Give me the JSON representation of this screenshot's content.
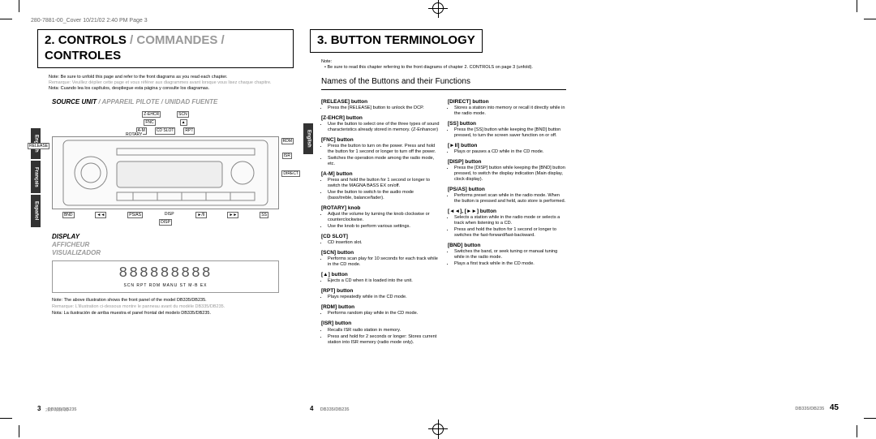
{
  "header_slug": "280-7881-00_Cover  10/21/02  2:40 PM  Page 3",
  "page_left": {
    "section_number": "2.",
    "section_title_en": "CONTROLS",
    "section_title_fr": "COMMANDES",
    "section_title_es": "CONTROLES",
    "note_en": "Note: Be sure to unfold this page and refer to the front diagrams as you read each chapter.",
    "note_fr": "Remarque: Veuillez déplier cette page et vous référer aux diagrammes avant lorsque vous lisez chaque chapitre.",
    "note_es": "Nota: Cuando lea los capítulos, despliegue esta página y consulte los diagramas.",
    "source_unit_en": "SOURCE UNIT",
    "source_unit_fr": "APPAREIL PILOTE",
    "source_unit_es": "UNIDAD FUENTE",
    "labels": {
      "release": "RELEASE",
      "zehcr": "Z-EHCR",
      "fnc": "FNC",
      "am": "A-M",
      "rotary": "ROTARY",
      "cdslot": "CD SLOT",
      "scn": "SCN",
      "eject": "▲",
      "rpt": "RPT",
      "rdm": "RDM",
      "isr": "ISR",
      "direct": "DIRECT",
      "bnd": "BND",
      "prev": "◄◄",
      "psas": "PS/AS",
      "disp": "DISP",
      "play": "►/II",
      "ss": "SS",
      "next": "►►"
    },
    "display_en": "DISPLAY",
    "display_fr": "AFFICHEUR",
    "display_es": "VISUALIZADOR",
    "lcd_text": "888888888",
    "lcd_sub": "SCN  RPT  RDM          MANU  ST  M-B EX",
    "illus_note_en": "Note: The above illustration shows the front panel of the model DB335/DB235.",
    "illus_note_fr": "Remarque: L'illustration ci-dessous montre le panneau avant du modèle DB335/DB235.",
    "illus_note_es": "Nota: La ilustración de arriba muestra el panel frontal del modelo DB335/DB235.",
    "tabs": {
      "en": "English",
      "fr": "Français",
      "es": "Español"
    },
    "page_number": "3",
    "model": "DB335/DB235",
    "footer_code": "280-7881-00"
  },
  "page_mid": {
    "section_number": "3.",
    "section_title": "BUTTON TERMINOLOGY",
    "subtitle": "Names of the Buttons and their Functions",
    "note_label": "Note:",
    "note_text": "Be sure to read this chapter referring to the front diagrams of chapter 2. CONTROLS on page 3 (unfold).",
    "tab_en": "English",
    "col1": [
      {
        "t": "[RELEASE] button",
        "d": [
          "Press the [RELEASE] button to unlock the DCP."
        ]
      },
      {
        "t": "[Z-EHCR] button",
        "d": [
          "Use the button to select one of the three types of sound characteristics already stored in memory. (Z-Enhancer)"
        ]
      },
      {
        "t": "[FNC] button",
        "d": [
          "Press the button to turn on the power. Press and hold the button for 1 second or longer to turn off the power.",
          "Switches the operation mode among the radio mode, etc."
        ]
      },
      {
        "t": "[A-M] button",
        "d": [
          "Press and hold the button for 1 second or longer to switch the MAGNA BASS EX on/off.",
          "Use the button to switch to the audio mode (bass/treble, balance/fader)."
        ]
      },
      {
        "t": "[ROTARY] knob",
        "d": [
          "Adjust the volume by turning the knob clockwise or counterclockwise.",
          "Use the knob to perform various settings."
        ]
      },
      {
        "t": "[CD SLOT]",
        "d": [
          "CD insertion slot."
        ]
      },
      {
        "t": "[SCN] button",
        "d": [
          "Performs scan play for 10 seconds for each track while in the CD mode."
        ]
      },
      {
        "t": "[▲] button",
        "d": [
          "Ejects a CD when it is loaded into the unit."
        ]
      },
      {
        "t": "[RPT] button",
        "d": [
          "Plays repeatedly while in the CD mode."
        ]
      },
      {
        "t": "[RDM] button",
        "d": [
          "Performs random play while in the CD mode."
        ]
      },
      {
        "t": "[ISR] button",
        "d": [
          "Recalls ISR radio station in memory.",
          "Press and hold for 2 seconds or longer: Stores current station into ISR memory (radio mode only)."
        ]
      }
    ],
    "col2": [
      {
        "t": "[DIRECT] button",
        "d": [
          "Stores a station into memory or recall it directly while in the radio mode."
        ]
      },
      {
        "t": "[SS] button",
        "d": [
          "Press the [SS] button while keeping the [BND] button pressed, to turn the screen saver function on or off."
        ]
      },
      {
        "t": "[►II] button",
        "d": [
          "Plays or pauses a CD while in the CD mode."
        ]
      },
      {
        "t": "[DISP] button",
        "d": [
          "Press the [DISP] button while keeping the [BND] button pressed, to switch the display indication (Main display, clock display)."
        ]
      },
      {
        "t": "[PS/AS] button",
        "d": [
          "Performs preset scan while in the radio mode. When the button is pressed and held, auto store is performed."
        ]
      },
      {
        "t": "[◄◄], [►►] button",
        "d": [
          "Selects a station while in the radio mode or selects a track when listening to a CD.",
          "Press and hold the button for 1 second or longer to switches the fast-forward/fast-backward."
        ]
      },
      {
        "t": "[BND] button",
        "d": [
          "Switches the band, or seek tuning or manual tuning while in the radio mode.",
          "Plays a first track while in the CD mode."
        ]
      }
    ],
    "page_number": "4",
    "model": "DB335/DB235"
  },
  "page_right": {
    "page_number": "45",
    "model": "DB335/DB235"
  }
}
